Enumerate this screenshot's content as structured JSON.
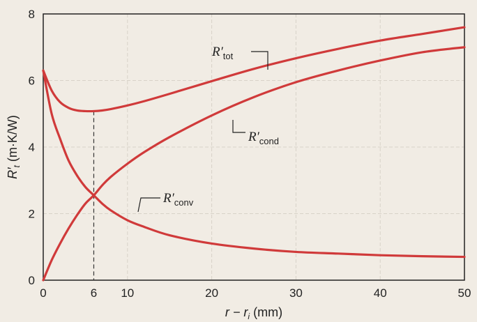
{
  "chart_data": {
    "type": "line",
    "title": "",
    "xlabel": "r − r",
    "xlabel_sub": "i",
    "xlabel_unit": " (mm)",
    "ylabel": "R′",
    "ylabel_sub": "t",
    "ylabel_unit": " (m·K/W)",
    "xlim": [
      0,
      50
    ],
    "ylim": [
      0,
      8
    ],
    "x_ticks": [
      0,
      6,
      10,
      20,
      30,
      40,
      50
    ],
    "y_ticks": [
      0,
      2,
      4,
      6,
      8
    ],
    "grid": true,
    "critical_radius_marker": 6,
    "x": [
      0,
      1,
      2,
      3,
      4,
      5,
      6,
      7,
      8,
      10,
      12,
      15,
      20,
      25,
      30,
      35,
      40,
      45,
      50
    ],
    "series": [
      {
        "name": "R′tot",
        "label_main": "R′",
        "label_sub": "tot",
        "values": [
          6.3,
          5.7,
          5.35,
          5.18,
          5.1,
          5.08,
          5.08,
          5.1,
          5.14,
          5.25,
          5.38,
          5.6,
          5.98,
          6.35,
          6.67,
          6.95,
          7.2,
          7.4,
          7.6
        ]
      },
      {
        "name": "R′cond",
        "label_main": "R′",
        "label_sub": "cond",
        "values": [
          0,
          0.6,
          1.1,
          1.55,
          1.95,
          2.3,
          2.55,
          2.85,
          3.1,
          3.5,
          3.85,
          4.3,
          4.95,
          5.5,
          5.95,
          6.3,
          6.6,
          6.85,
          7.0
        ]
      },
      {
        "name": "R′conv",
        "label_main": "R′",
        "label_sub": "conv",
        "values": [
          6.3,
          5.0,
          4.25,
          3.6,
          3.15,
          2.8,
          2.55,
          2.3,
          2.1,
          1.8,
          1.6,
          1.35,
          1.1,
          0.95,
          0.85,
          0.8,
          0.75,
          0.72,
          0.7
        ]
      }
    ],
    "colors": {
      "curve": "#d03a3a",
      "grid": "#d8d2c8",
      "axis": "#222222",
      "background": "#f1ece4"
    }
  }
}
